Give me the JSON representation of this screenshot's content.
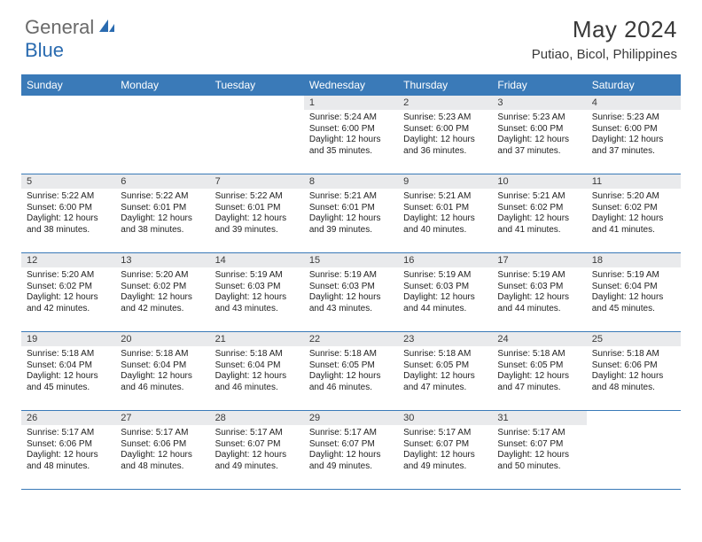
{
  "logo": {
    "text1": "General",
    "text2": "Blue"
  },
  "title": "May 2024",
  "location": "Putiao, Bicol, Philippines",
  "colors": {
    "header_blue": "#3a7ab8",
    "daynum_bg": "#e9eaec",
    "border": "#3a7ab8",
    "text_dark": "#3a3a3a",
    "logo_gray": "#6a6a6a",
    "logo_blue": "#2a6bb0"
  },
  "weekdays": [
    "Sunday",
    "Monday",
    "Tuesday",
    "Wednesday",
    "Thursday",
    "Friday",
    "Saturday"
  ],
  "weeks": [
    [
      {
        "empty": true
      },
      {
        "empty": true
      },
      {
        "empty": true
      },
      {
        "day": "1",
        "sunrise": "Sunrise: 5:24 AM",
        "sunset": "Sunset: 6:00 PM",
        "daylight": "Daylight: 12 hours and 35 minutes."
      },
      {
        "day": "2",
        "sunrise": "Sunrise: 5:23 AM",
        "sunset": "Sunset: 6:00 PM",
        "daylight": "Daylight: 12 hours and 36 minutes."
      },
      {
        "day": "3",
        "sunrise": "Sunrise: 5:23 AM",
        "sunset": "Sunset: 6:00 PM",
        "daylight": "Daylight: 12 hours and 37 minutes."
      },
      {
        "day": "4",
        "sunrise": "Sunrise: 5:23 AM",
        "sunset": "Sunset: 6:00 PM",
        "daylight": "Daylight: 12 hours and 37 minutes."
      }
    ],
    [
      {
        "day": "5",
        "sunrise": "Sunrise: 5:22 AM",
        "sunset": "Sunset: 6:00 PM",
        "daylight": "Daylight: 12 hours and 38 minutes."
      },
      {
        "day": "6",
        "sunrise": "Sunrise: 5:22 AM",
        "sunset": "Sunset: 6:01 PM",
        "daylight": "Daylight: 12 hours and 38 minutes."
      },
      {
        "day": "7",
        "sunrise": "Sunrise: 5:22 AM",
        "sunset": "Sunset: 6:01 PM",
        "daylight": "Daylight: 12 hours and 39 minutes."
      },
      {
        "day": "8",
        "sunrise": "Sunrise: 5:21 AM",
        "sunset": "Sunset: 6:01 PM",
        "daylight": "Daylight: 12 hours and 39 minutes."
      },
      {
        "day": "9",
        "sunrise": "Sunrise: 5:21 AM",
        "sunset": "Sunset: 6:01 PM",
        "daylight": "Daylight: 12 hours and 40 minutes."
      },
      {
        "day": "10",
        "sunrise": "Sunrise: 5:21 AM",
        "sunset": "Sunset: 6:02 PM",
        "daylight": "Daylight: 12 hours and 41 minutes."
      },
      {
        "day": "11",
        "sunrise": "Sunrise: 5:20 AM",
        "sunset": "Sunset: 6:02 PM",
        "daylight": "Daylight: 12 hours and 41 minutes."
      }
    ],
    [
      {
        "day": "12",
        "sunrise": "Sunrise: 5:20 AM",
        "sunset": "Sunset: 6:02 PM",
        "daylight": "Daylight: 12 hours and 42 minutes."
      },
      {
        "day": "13",
        "sunrise": "Sunrise: 5:20 AM",
        "sunset": "Sunset: 6:02 PM",
        "daylight": "Daylight: 12 hours and 42 minutes."
      },
      {
        "day": "14",
        "sunrise": "Sunrise: 5:19 AM",
        "sunset": "Sunset: 6:03 PM",
        "daylight": "Daylight: 12 hours and 43 minutes."
      },
      {
        "day": "15",
        "sunrise": "Sunrise: 5:19 AM",
        "sunset": "Sunset: 6:03 PM",
        "daylight": "Daylight: 12 hours and 43 minutes."
      },
      {
        "day": "16",
        "sunrise": "Sunrise: 5:19 AM",
        "sunset": "Sunset: 6:03 PM",
        "daylight": "Daylight: 12 hours and 44 minutes."
      },
      {
        "day": "17",
        "sunrise": "Sunrise: 5:19 AM",
        "sunset": "Sunset: 6:03 PM",
        "daylight": "Daylight: 12 hours and 44 minutes."
      },
      {
        "day": "18",
        "sunrise": "Sunrise: 5:19 AM",
        "sunset": "Sunset: 6:04 PM",
        "daylight": "Daylight: 12 hours and 45 minutes."
      }
    ],
    [
      {
        "day": "19",
        "sunrise": "Sunrise: 5:18 AM",
        "sunset": "Sunset: 6:04 PM",
        "daylight": "Daylight: 12 hours and 45 minutes."
      },
      {
        "day": "20",
        "sunrise": "Sunrise: 5:18 AM",
        "sunset": "Sunset: 6:04 PM",
        "daylight": "Daylight: 12 hours and 46 minutes."
      },
      {
        "day": "21",
        "sunrise": "Sunrise: 5:18 AM",
        "sunset": "Sunset: 6:04 PM",
        "daylight": "Daylight: 12 hours and 46 minutes."
      },
      {
        "day": "22",
        "sunrise": "Sunrise: 5:18 AM",
        "sunset": "Sunset: 6:05 PM",
        "daylight": "Daylight: 12 hours and 46 minutes."
      },
      {
        "day": "23",
        "sunrise": "Sunrise: 5:18 AM",
        "sunset": "Sunset: 6:05 PM",
        "daylight": "Daylight: 12 hours and 47 minutes."
      },
      {
        "day": "24",
        "sunrise": "Sunrise: 5:18 AM",
        "sunset": "Sunset: 6:05 PM",
        "daylight": "Daylight: 12 hours and 47 minutes."
      },
      {
        "day": "25",
        "sunrise": "Sunrise: 5:18 AM",
        "sunset": "Sunset: 6:06 PM",
        "daylight": "Daylight: 12 hours and 48 minutes."
      }
    ],
    [
      {
        "day": "26",
        "sunrise": "Sunrise: 5:17 AM",
        "sunset": "Sunset: 6:06 PM",
        "daylight": "Daylight: 12 hours and 48 minutes."
      },
      {
        "day": "27",
        "sunrise": "Sunrise: 5:17 AM",
        "sunset": "Sunset: 6:06 PM",
        "daylight": "Daylight: 12 hours and 48 minutes."
      },
      {
        "day": "28",
        "sunrise": "Sunrise: 5:17 AM",
        "sunset": "Sunset: 6:07 PM",
        "daylight": "Daylight: 12 hours and 49 minutes."
      },
      {
        "day": "29",
        "sunrise": "Sunrise: 5:17 AM",
        "sunset": "Sunset: 6:07 PM",
        "daylight": "Daylight: 12 hours and 49 minutes."
      },
      {
        "day": "30",
        "sunrise": "Sunrise: 5:17 AM",
        "sunset": "Sunset: 6:07 PM",
        "daylight": "Daylight: 12 hours and 49 minutes."
      },
      {
        "day": "31",
        "sunrise": "Sunrise: 5:17 AM",
        "sunset": "Sunset: 6:07 PM",
        "daylight": "Daylight: 12 hours and 50 minutes."
      },
      {
        "empty": true
      }
    ]
  ]
}
